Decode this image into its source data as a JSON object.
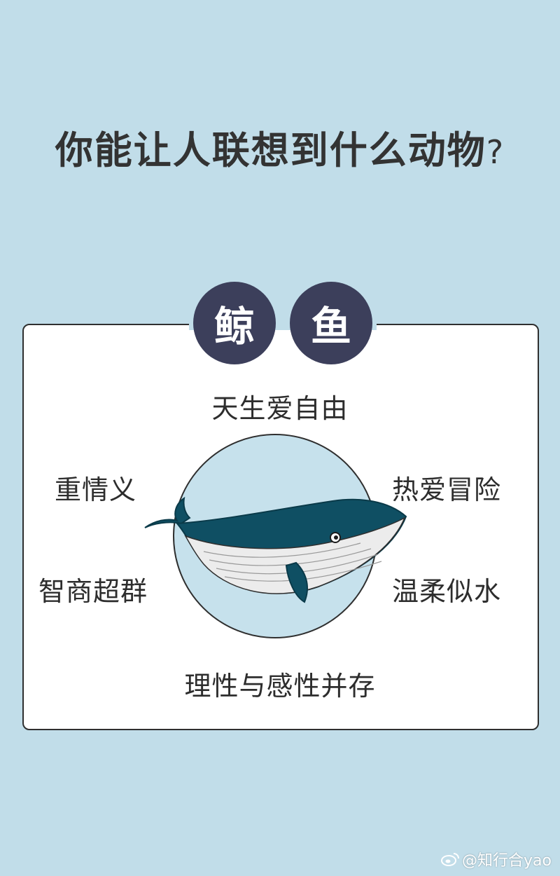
{
  "title": {
    "text": "你能让人联想到什么动物",
    "mark": "?"
  },
  "badges": [
    "鲸",
    "鱼"
  ],
  "traits": {
    "top": "天生爱自由",
    "left_1": "重情义",
    "right_1": "热爱冒险",
    "left_2": "智商超群",
    "right_2": "温柔似水",
    "bottom": "理性与感性并存"
  },
  "watermark": "@知行合yao",
  "colors": {
    "background": "#c1dde9",
    "badge": "#3c3f5b",
    "whale": "#0f4f63",
    "circle": "#c6e1ec"
  },
  "icons": [
    "whale-illustration",
    "weibo-icon"
  ]
}
